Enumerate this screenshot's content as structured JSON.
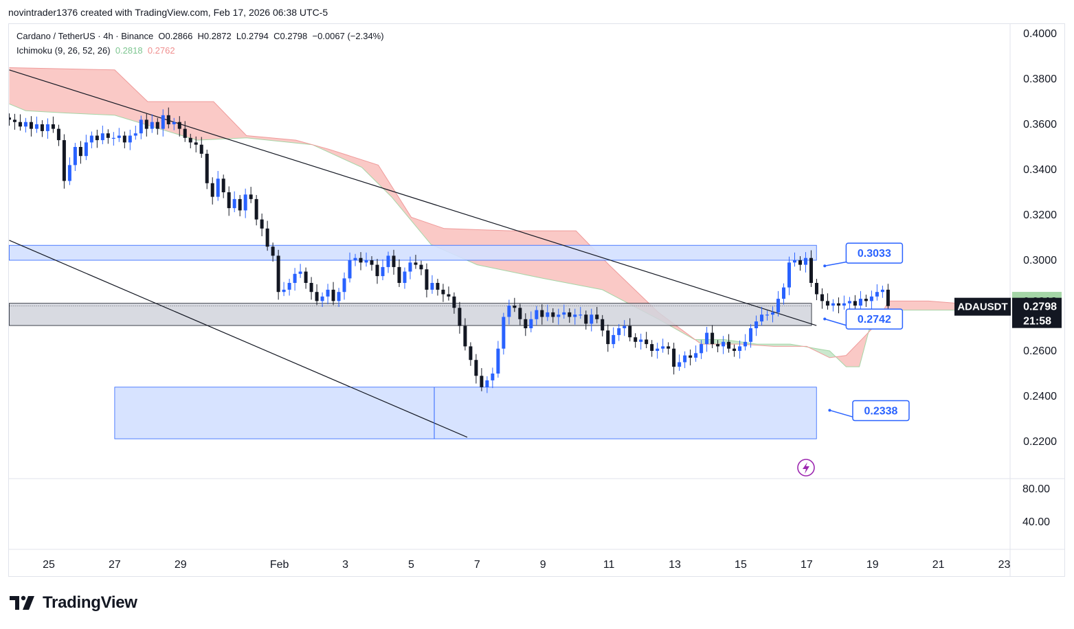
{
  "header": {
    "attribution": "novintrader1376 created with TradingView.com, Feb 17, 2026 06:38 UTC-5"
  },
  "legend": {
    "symbol_line": "Cardano / TetherUS · 4h · Binance  O0.2866  H0.2872  L0.2794  C0.2798  −0.0067 (−2.34%)",
    "indicator_name": "Ichimoku (9, 26, 52, 26)",
    "indicator_value_1": "0.2818",
    "indicator_value_2": "0.2762"
  },
  "footer": {
    "brand": "TradingView"
  },
  "colors": {
    "bull": "#2962ff",
    "bear": "#131722",
    "cloud_bear": "#f8b7b3",
    "cloud_bull": "#b9e0bd",
    "zone_blue": "#d3e0ff",
    "zone_border": "#2962ff",
    "zone_gray": "#d1d4dc",
    "accent_purple": "#9c27b0"
  },
  "chart_data": {
    "type": "candlestick",
    "symbol": "ADAUSDT",
    "title": "Cardano / TetherUS · 4h · Binance",
    "ylim": [
      0.212,
      0.4035
    ],
    "y_ticks": [
      "0.4000",
      "0.3800",
      "0.3600",
      "0.3400",
      "0.3200",
      "0.3000",
      "0.2800",
      "0.2600",
      "0.2400",
      "0.2200"
    ],
    "sub_ticks": [
      "80.00",
      "40.00"
    ],
    "x_ticks": [
      {
        "label": "25",
        "day": 0
      },
      {
        "label": "27",
        "day": 2
      },
      {
        "label": "29",
        "day": 4
      },
      {
        "label": "Feb",
        "day": 7
      },
      {
        "label": "3",
        "day": 9
      },
      {
        "label": "5",
        "day": 11
      },
      {
        "label": "7",
        "day": 13
      },
      {
        "label": "9",
        "day": 15
      },
      {
        "label": "11",
        "day": 17
      },
      {
        "label": "13",
        "day": 19
      },
      {
        "label": "15",
        "day": 21
      },
      {
        "label": "17",
        "day": 23
      },
      {
        "label": "19",
        "day": 25
      },
      {
        "label": "21",
        "day": 27
      },
      {
        "label": "23",
        "day": 29
      }
    ],
    "start_day": -1.2,
    "bar_days": 0.1667,
    "closes": [
      0.362,
      0.361,
      0.359,
      0.361,
      0.358,
      0.36,
      0.357,
      0.36,
      0.358,
      0.353,
      0.335,
      0.342,
      0.35,
      0.346,
      0.352,
      0.355,
      0.353,
      0.356,
      0.354,
      0.354,
      0.355,
      0.352,
      0.355,
      0.356,
      0.362,
      0.358,
      0.361,
      0.358,
      0.364,
      0.36,
      0.361,
      0.358,
      0.354,
      0.352,
      0.351,
      0.347,
      0.334,
      0.328,
      0.336,
      0.33,
      0.323,
      0.327,
      0.322,
      0.329,
      0.327,
      0.318,
      0.314,
      0.306,
      0.302,
      0.286,
      0.287,
      0.29,
      0.294,
      0.295,
      0.29,
      0.286,
      0.282,
      0.284,
      0.287,
      0.282,
      0.286,
      0.292,
      0.3,
      0.301,
      0.299,
      0.3,
      0.298,
      0.293,
      0.297,
      0.302,
      0.297,
      0.29,
      0.295,
      0.299,
      0.298,
      0.296,
      0.287,
      0.29,
      0.287,
      0.285,
      0.284,
      0.279,
      0.271,
      0.262,
      0.256,
      0.249,
      0.244,
      0.247,
      0.25,
      0.261,
      0.275,
      0.28,
      0.279,
      0.274,
      0.27,
      0.274,
      0.278,
      0.275,
      0.277,
      0.275,
      0.276,
      0.277,
      0.275,
      0.276,
      0.276,
      0.272,
      0.276,
      0.274,
      0.269,
      0.263,
      0.267,
      0.27,
      0.271,
      0.266,
      0.264,
      0.265,
      0.263,
      0.26,
      0.261,
      0.262,
      0.261,
      0.253,
      0.255,
      0.258,
      0.257,
      0.259,
      0.263,
      0.268,
      0.263,
      0.262,
      0.264,
      0.261,
      0.26,
      0.262,
      0.264,
      0.27,
      0.273,
      0.276,
      0.276,
      0.277,
      0.283,
      0.288,
      0.299,
      0.3,
      0.298,
      0.301,
      0.29,
      0.285,
      0.282,
      0.28,
      0.281,
      0.28,
      0.281,
      0.282,
      0.28,
      0.283,
      0.282,
      0.284,
      0.286,
      0.287,
      0.2798
    ],
    "cloud": {
      "span_a": [
        [
          -1.2,
          0.369
        ],
        [
          -0.7,
          0.366
        ],
        [
          0.5,
          0.365
        ],
        [
          2,
          0.364
        ],
        [
          4.5,
          0.353
        ],
        [
          6,
          0.354
        ],
        [
          8,
          0.351
        ],
        [
          9.5,
          0.341
        ],
        [
          10.4,
          0.328
        ],
        [
          11.6,
          0.307
        ],
        [
          13,
          0.298
        ],
        [
          15,
          0.292
        ],
        [
          16.8,
          0.287
        ],
        [
          18.5,
          0.274
        ],
        [
          19.6,
          0.265
        ],
        [
          20.5,
          0.265
        ],
        [
          21.5,
          0.263
        ],
        [
          22.5,
          0.263
        ],
        [
          23.7,
          0.26
        ],
        [
          24.2,
          0.253
        ],
        [
          24.6,
          0.253
        ],
        [
          25,
          0.275
        ],
        [
          25.5,
          0.278
        ],
        [
          27.6,
          0.278
        ]
      ],
      "span_b": [
        [
          -1.2,
          0.385
        ],
        [
          2,
          0.384
        ],
        [
          3,
          0.37
        ],
        [
          5,
          0.37
        ],
        [
          6,
          0.355
        ],
        [
          7.5,
          0.353
        ],
        [
          8.5,
          0.349
        ],
        [
          10,
          0.342
        ],
        [
          11,
          0.319
        ],
        [
          12,
          0.314
        ],
        [
          14,
          0.313
        ],
        [
          16,
          0.313
        ],
        [
          17,
          0.298
        ],
        [
          18.5,
          0.277
        ],
        [
          19.8,
          0.263
        ],
        [
          21,
          0.263
        ],
        [
          22,
          0.262
        ],
        [
          23,
          0.262
        ],
        [
          23.7,
          0.257
        ],
        [
          24.2,
          0.258
        ],
        [
          24.6,
          0.264
        ],
        [
          25,
          0.27
        ],
        [
          25.5,
          0.282
        ],
        [
          26.7,
          0.282
        ],
        [
          27.6,
          0.281
        ]
      ]
    },
    "zones": [
      {
        "day_from": -1.2,
        "day_to": 23.3,
        "low": 0.3,
        "high": 0.3066,
        "kind": "resistance"
      },
      {
        "day_from": -1.2,
        "day_to": 23.15,
        "low": 0.2712,
        "high": 0.281,
        "kind": "pivot"
      },
      {
        "day_from": 2.0,
        "day_to": 23.3,
        "low": 0.2212,
        "high": 0.244,
        "kind": "support"
      }
    ],
    "trendlines": [
      {
        "from": [
          -1.2,
          0.384
        ],
        "to": [
          23.3,
          0.2712
        ]
      },
      {
        "from": [
          -1.2,
          0.3088
        ],
        "to": [
          12.7,
          0.2219
        ]
      }
    ],
    "wick_line": {
      "day": 11.7,
      "low": 0.2212,
      "high": 0.244
    },
    "callouts": [
      {
        "label": "0.3033",
        "day": 24.2,
        "price": 0.3033,
        "anchor": [
          23.55,
          0.2975
        ]
      },
      {
        "label": "0.2742",
        "day": 24.2,
        "price": 0.2742,
        "anchor": [
          23.55,
          0.2741
        ]
      },
      {
        "label": "0.2338",
        "day": 24.4,
        "price": 0.2338,
        "anchor": [
          23.7,
          0.2338
        ]
      }
    ],
    "last_price": {
      "symbol": "ADAUSDT",
      "value": "0.2798",
      "countdown": "21:58",
      "upper": "0.2818",
      "lower": "0.2762"
    }
  }
}
